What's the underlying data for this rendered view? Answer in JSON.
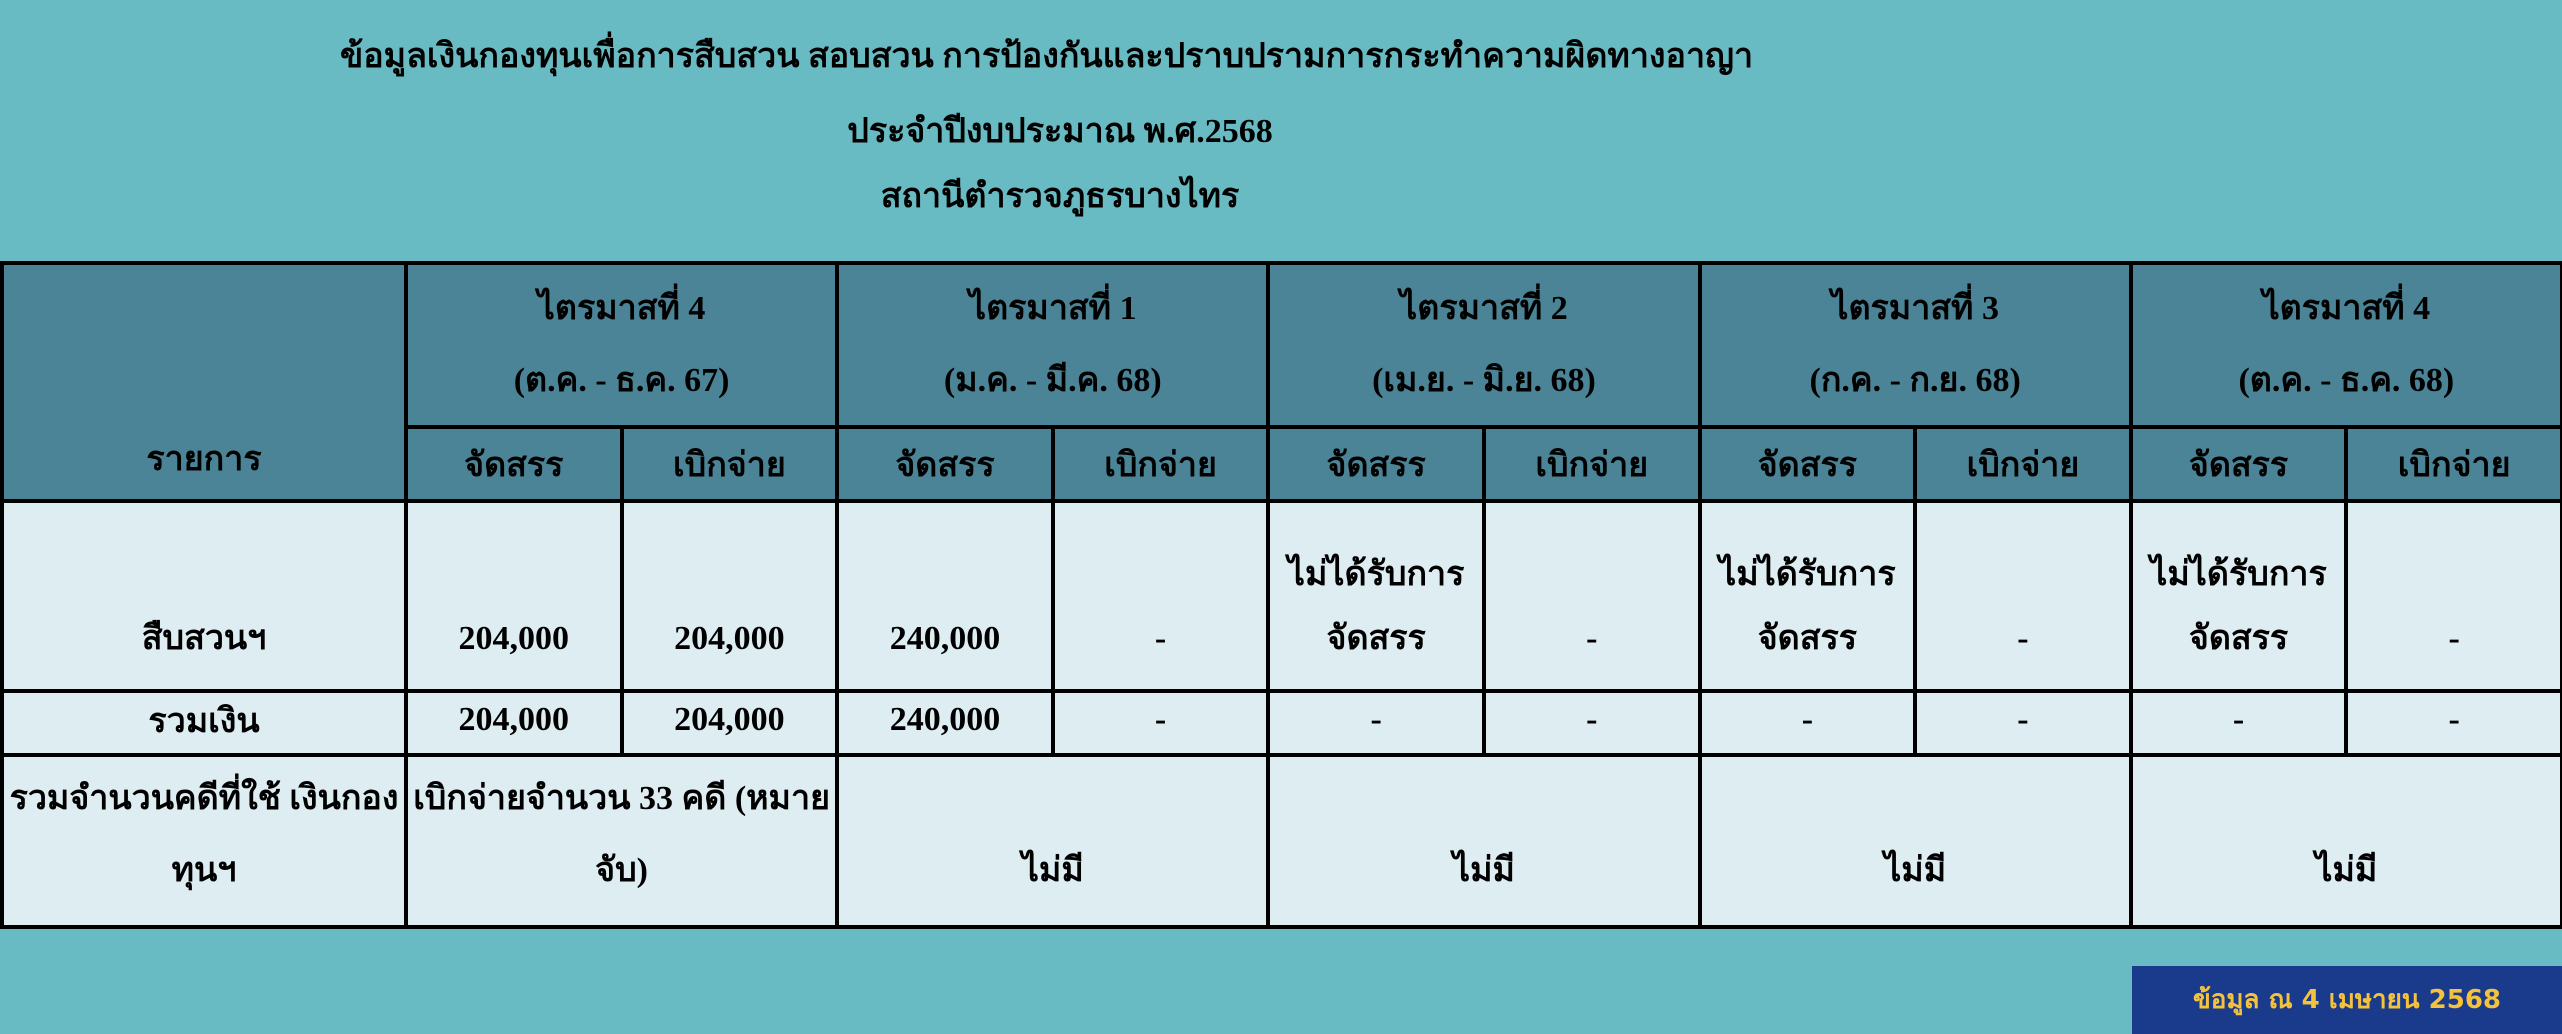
{
  "header": {
    "title": "ข้อมูลเงินกองทุนเพื่อการสืบสวน สอบสวน การป้องกันและปราบปรามการกระทำความผิดทางอาญา",
    "subtitle": "ประจำปีงบประมาณ พ.ศ.2568",
    "station": "สถานีตำรวจภูธรบางไทร"
  },
  "table": {
    "item_header": "รายการ",
    "quarters": [
      {
        "name": "ไตรมาสที่ 4",
        "period": "(ต.ค. - ธ.ค. 67)"
      },
      {
        "name": "ไตรมาสที่ 1",
        "period": "(ม.ค. - มี.ค. 68)"
      },
      {
        "name": "ไตรมาสที่ 2",
        "period": "(เม.ย. - มิ.ย. 68)"
      },
      {
        "name": "ไตรมาสที่ 3",
        "period": "(ก.ค. - ก.ย. 68)"
      },
      {
        "name": "ไตรมาสที่ 4",
        "period": "(ต.ค. - ธ.ค. 68)"
      }
    ],
    "sub_headers": {
      "allocated": "จัดสรร",
      "disbursed": "เบิกจ่าย"
    },
    "rows": [
      {
        "label": "สืบสวนฯ",
        "values": [
          "204,000",
          "204,000",
          "240,000",
          "-",
          "ไม่ได้รับการ จัดสรร",
          "-",
          "ไม่ได้รับการ จัดสรร",
          "-",
          "ไม่ได้รับการ จัดสรร",
          "-"
        ]
      },
      {
        "label": "รวมเงิน",
        "values": [
          "204,000",
          "204,000",
          "240,000",
          "-",
          "-",
          "-",
          "-",
          "-",
          "-",
          "-"
        ]
      }
    ],
    "cases_row": {
      "label": "รวมจำนวนคดีที่ใช้ เงินกองทุนฯ",
      "values": [
        "เบิกจ่ายจำนวน 33 คดี (หมายจับ)",
        "ไม่มี",
        "ไม่มี",
        "ไม่มี",
        "ไม่มี"
      ]
    }
  },
  "footer": {
    "as_of": "ข้อมูล ณ 4 เมษายน 2568"
  },
  "colors": {
    "background": "#69bbc3",
    "header": "#4a8496",
    "cell": "#deedf2",
    "badge_bg": "#1a3a8c",
    "badge_text": "#f5c23c"
  }
}
